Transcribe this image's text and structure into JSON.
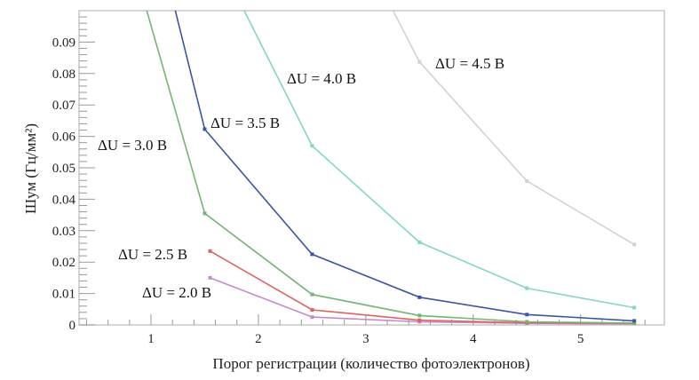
{
  "chart_data": {
    "type": "line",
    "title": "",
    "xlabel": "Порог регистрации (количество фотоэлектронов)",
    "ylabel": "Шум (Гц/мм²)",
    "xlim": [
      0.33,
      5.78
    ],
    "ylim": [
      0,
      0.1
    ],
    "x_ticks": [
      "1",
      "2",
      "3",
      "4",
      "5"
    ],
    "x_tick_values": [
      1,
      2,
      3,
      4,
      5
    ],
    "y_ticks": [
      "0",
      "0.01",
      "0.02",
      "0.03",
      "0.04",
      "0.05",
      "0.06",
      "0.07",
      "0.08",
      "0.09"
    ],
    "y_tick_values": [
      0,
      0.01,
      0.02,
      0.03,
      0.04,
      0.05,
      0.06,
      0.07,
      0.08,
      0.09
    ],
    "grid": false,
    "legend": "none (inline labels)",
    "series": [
      {
        "name": "ΔU = 2.0 В",
        "color": "#c98ac9",
        "x": [
          1.55,
          2.5,
          3.5,
          4.5,
          5.5
        ],
        "y": [
          0.015,
          0.0025,
          0.001,
          0.0005,
          0.0003
        ]
      },
      {
        "name": "ΔU = 2.5 В",
        "color": "#e06262",
        "x": [
          1.55,
          2.5,
          3.5,
          4.5,
          5.5
        ],
        "y": [
          0.0235,
          0.0048,
          0.0015,
          0.0007,
          0.0005
        ]
      },
      {
        "name": "ΔU = 3.0 В",
        "color": "#74b474",
        "x": [
          0.5,
          1.5,
          2.5,
          3.5,
          4.5,
          5.5
        ],
        "y": [
          0.155,
          0.0355,
          0.0097,
          0.003,
          0.001,
          0.0006
        ]
      },
      {
        "name": "ΔU = 3.5 В",
        "color": "#3b56a2",
        "x": [
          0.5,
          1.5,
          2.5,
          3.5,
          4.5,
          5.5
        ],
        "y": [
          0.2,
          0.0623,
          0.0225,
          0.0088,
          0.0033,
          0.0013
        ]
      },
      {
        "name": "ΔU = 4.0 В",
        "color": "#82d9bb",
        "x": [
          1.5,
          2.5,
          3.5,
          4.5,
          5.5
        ],
        "y": [
          0.125,
          0.057,
          0.0263,
          0.0117,
          0.0055
        ]
      },
      {
        "name": "ΔU = 4.5 В",
        "color": "#d2d2d2",
        "x": [
          2.5,
          3.5,
          4.5,
          5.5
        ],
        "y": [
          0.15,
          0.0837,
          0.0458,
          0.0256
        ]
      }
    ]
  }
}
